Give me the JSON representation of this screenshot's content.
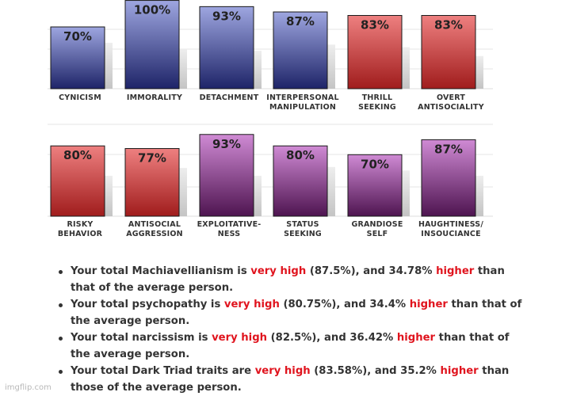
{
  "chart_data": [
    {
      "type": "bar",
      "categories": [
        "CYNICISM",
        "IMMORALITY",
        "DETACHMENT",
        "INTERPERSONAL MANIPULATION",
        "THRILL SEEKING",
        "OVERT ANTISOCIALITY"
      ],
      "category_lines": [
        [
          "CYNICISM"
        ],
        [
          "IMMORALITY"
        ],
        [
          "DETACHMENT"
        ],
        [
          "INTERPERSONAL",
          "MANIPULATION"
        ],
        [
          "THRILL",
          "SEEKING"
        ],
        [
          "OVERT",
          "ANTISOCIALITY"
        ]
      ],
      "values": [
        70,
        100,
        93,
        87,
        83,
        83
      ],
      "value_labels": [
        "70%",
        "100%",
        "93%",
        "87%",
        "83%",
        "83%"
      ],
      "average_values": [
        52,
        45,
        43,
        50,
        47,
        37
      ],
      "colors": [
        "blue",
        "blue",
        "blue",
        "blue",
        "red",
        "red"
      ],
      "ylim": [
        0,
        100
      ],
      "grid": true,
      "legend": "none"
    },
    {
      "type": "bar",
      "categories": [
        "RISKY BEHAVIOR",
        "ANTISOCIAL AGGRESSION",
        "EXPLOITATIVE-NESS",
        "STATUS SEEKING",
        "GRANDIOSE SELF",
        "HAUGHTINESS/ INSOUCIANCE"
      ],
      "category_lines": [
        [
          "RISKY",
          "BEHAVIOR"
        ],
        [
          "ANTISOCIAL",
          "AGGRESSION"
        ],
        [
          "EXPLOITATIVE-",
          "NESS"
        ],
        [
          "STATUS",
          "SEEKING"
        ],
        [
          "GRANDIOSE",
          "SELF"
        ],
        [
          "HAUGHTINESS/",
          "INSOUCIANCE"
        ]
      ],
      "values": [
        80,
        77,
        93,
        80,
        70,
        87
      ],
      "value_labels": [
        "80%",
        "77%",
        "93%",
        "80%",
        "70%",
        "87%"
      ],
      "average_values": [
        46,
        55,
        46,
        56,
        52,
        46
      ],
      "colors": [
        "red",
        "red",
        "purple",
        "purple",
        "purple",
        "purple"
      ],
      "ylim": [
        0,
        100
      ],
      "grid": true,
      "legend": "none"
    }
  ],
  "colors": {
    "blue": [
      "#9ea6e0",
      "#1e2468"
    ],
    "red": [
      "#ee8080",
      "#a01c1c"
    ],
    "purple": [
      "#cf8ad4",
      "#4e1450"
    ],
    "average_bar": [
      "#eeeeee",
      "#c4c4c4"
    ],
    "highlight": "#e0141e"
  },
  "summary": [
    {
      "pre": "Your total Machiavellianism is ",
      "level": "very high",
      "mid": " (87.5%), and 34.78% ",
      "dir": "higher",
      "post": " than that of the average person."
    },
    {
      "pre": "Your total psychopathy is ",
      "level": "very high",
      "mid": " (80.75%), and 34.4% ",
      "dir": "higher",
      "post": " than that of the average person."
    },
    {
      "pre": "Your total narcissism is ",
      "level": "very high",
      "mid": " (82.5%), and 36.42% ",
      "dir": "higher",
      "post": " than that of the average person."
    },
    {
      "pre": "Your total Dark Triad traits are ",
      "level": "very high",
      "mid": " (83.58%), and 35.2% ",
      "dir": "higher",
      "post": " than those of the average person."
    }
  ],
  "watermark": "imgflip.com"
}
